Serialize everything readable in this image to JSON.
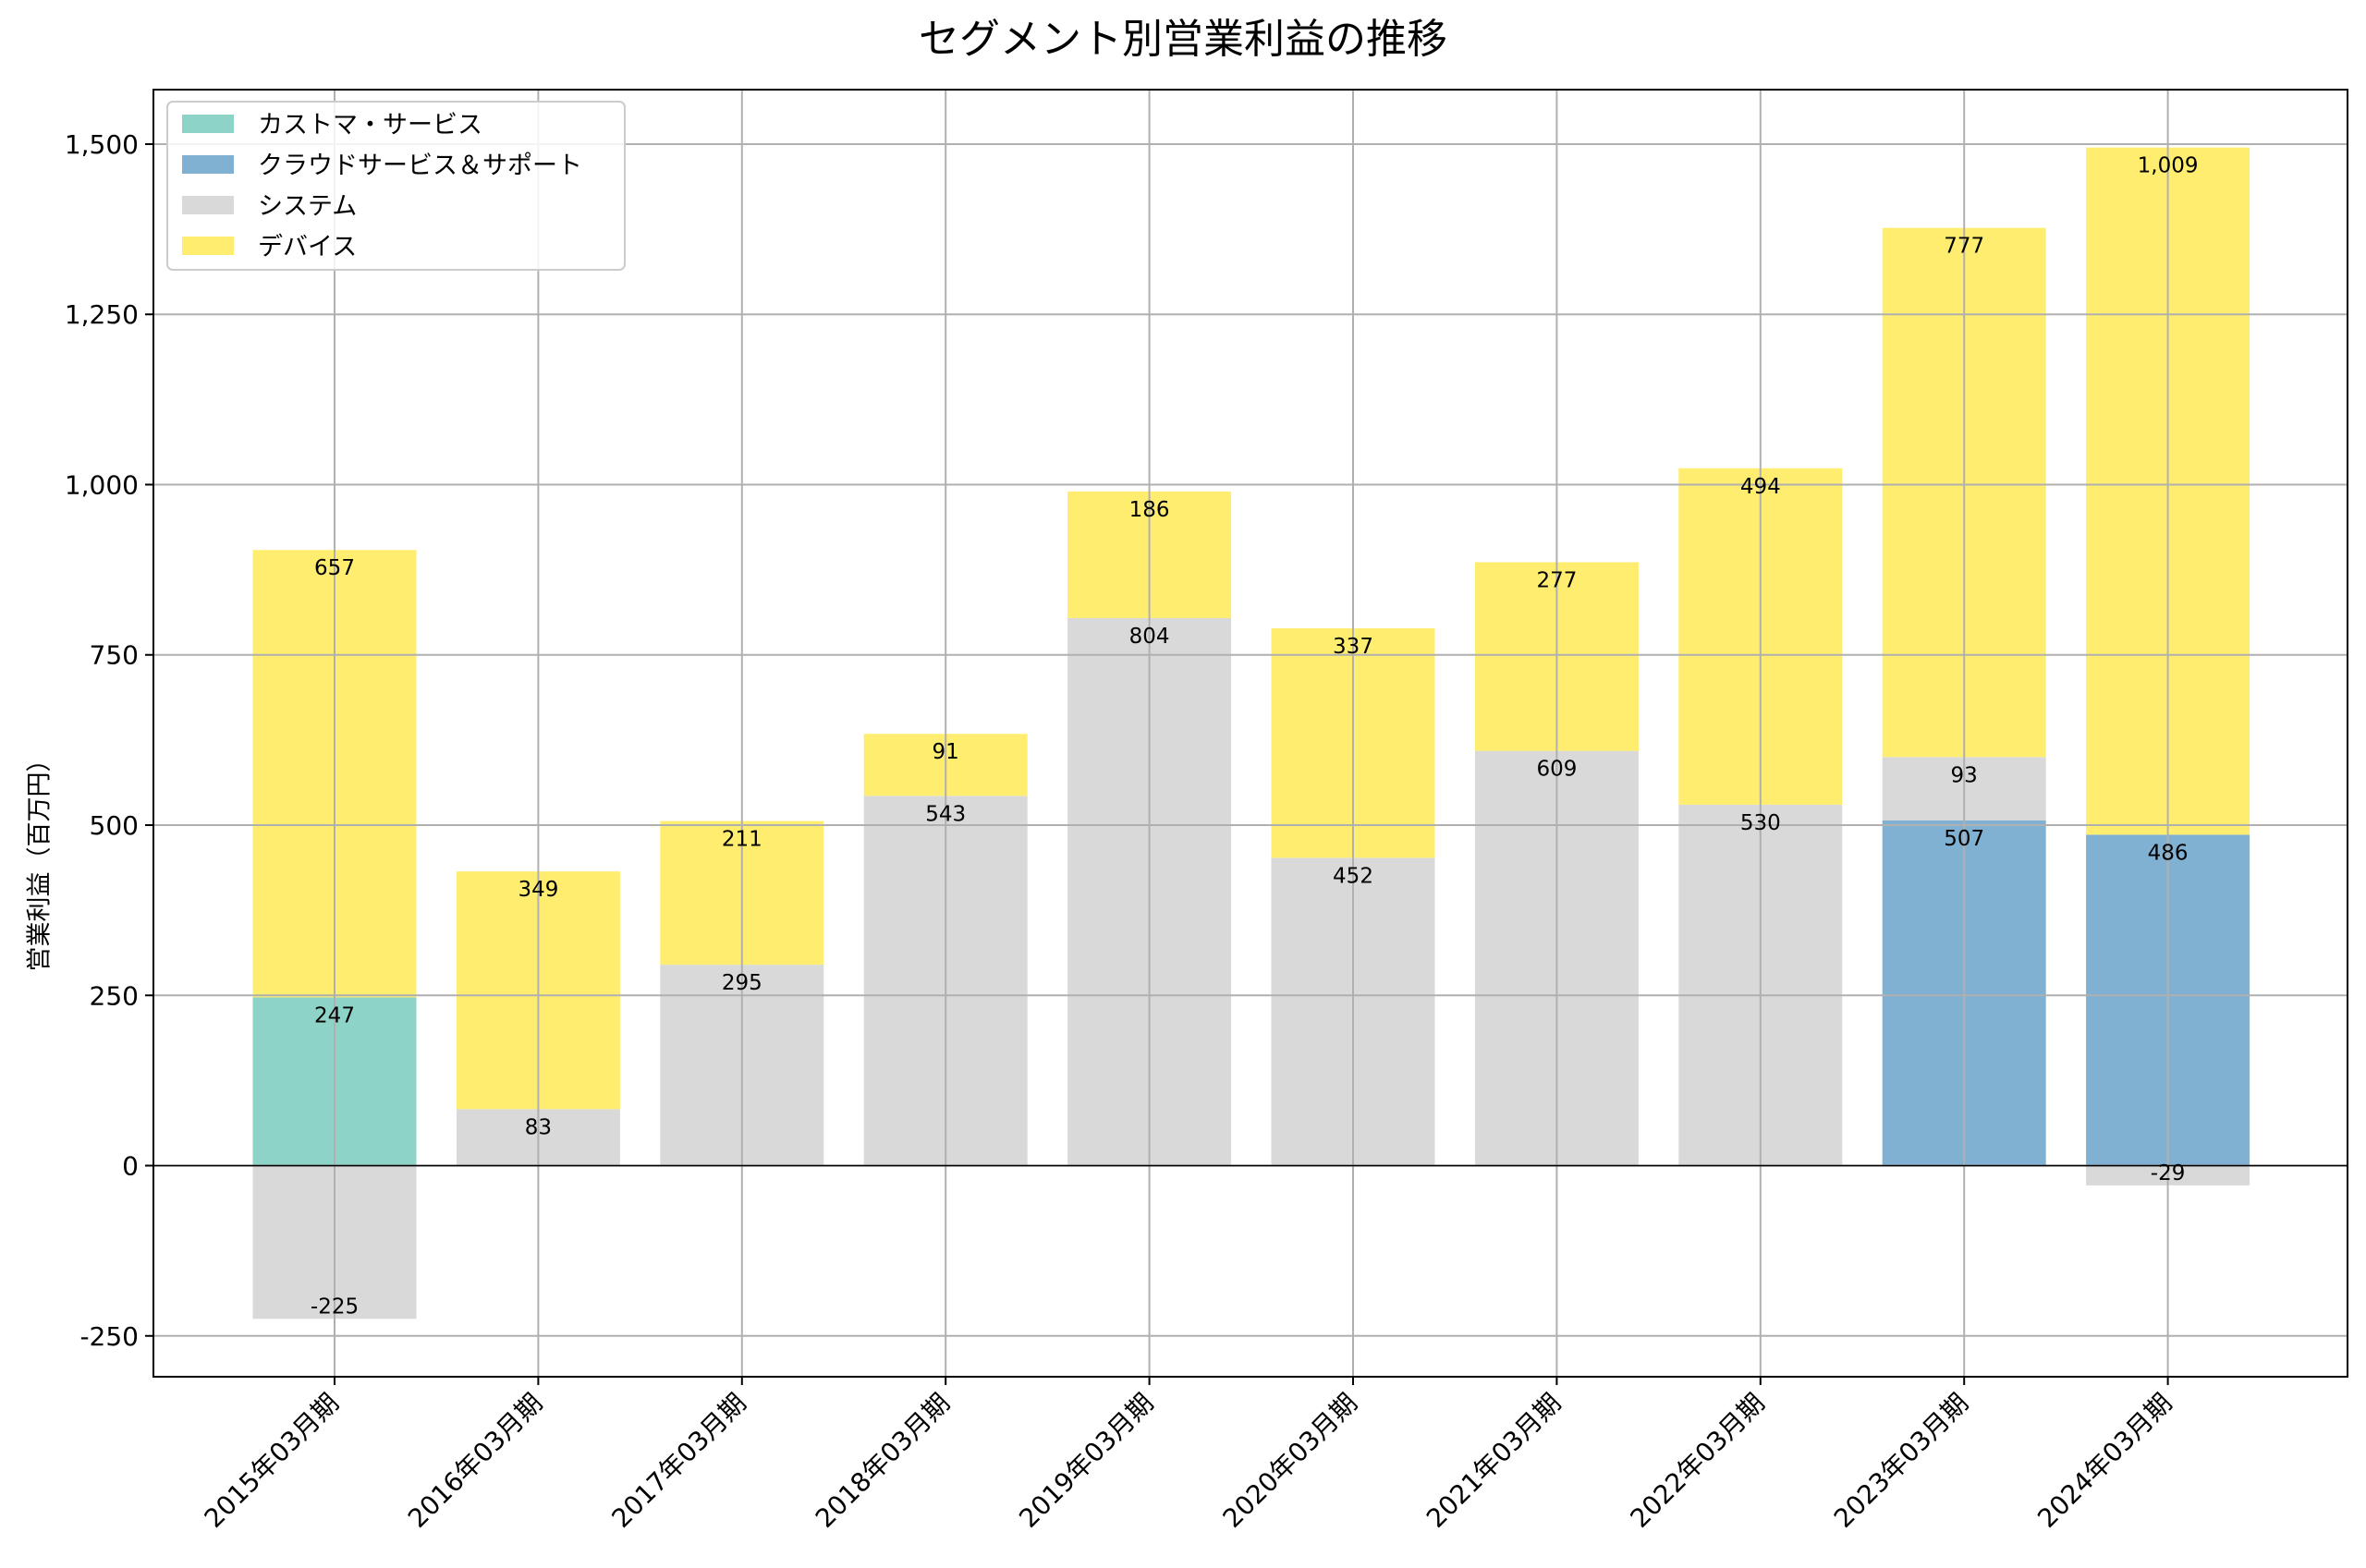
{
  "chart_data": {
    "type": "bar",
    "stacked": true,
    "title": "セグメント別営業利益の推移",
    "xlabel": "",
    "ylabel": "営業利益（百万円）",
    "ylim": [
      -310,
      1580
    ],
    "yticks": [
      -250,
      0,
      250,
      500,
      750,
      1000,
      1250,
      1500
    ],
    "ytick_labels": [
      "-250",
      "0",
      "250",
      "500",
      "750",
      "1,000",
      "1,250",
      "1,500"
    ],
    "grid": true,
    "legend_position": "top-left",
    "categories": [
      "2015年03月期",
      "2016年03月期",
      "2017年03月期",
      "2018年03月期",
      "2019年03月期",
      "2020年03月期",
      "2021年03月期",
      "2022年03月期",
      "2023年03月期",
      "2024年03月期"
    ],
    "series": [
      {
        "name": "カストマ・サービス",
        "color": "#8dd3c7",
        "values": [
          247,
          null,
          null,
          null,
          null,
          null,
          null,
          null,
          null,
          null
        ],
        "labels": [
          "247",
          "",
          "",
          "",
          "",
          "",
          "",
          "",
          "",
          ""
        ]
      },
      {
        "name": "クラウドサービス＆サポート",
        "color": "#80b1d3",
        "values": [
          null,
          null,
          null,
          null,
          null,
          null,
          null,
          null,
          507,
          486
        ],
        "labels": [
          "",
          "",
          "",
          "",
          "",
          "",
          "",
          "",
          "507",
          "486"
        ]
      },
      {
        "name": "システム",
        "color": "#d9d9d9",
        "values": [
          -225,
          83,
          295,
          543,
          804,
          452,
          609,
          530,
          93,
          -29
        ],
        "labels": [
          "-225",
          "83",
          "295",
          "543",
          "804",
          "452",
          "609",
          "530",
          "93",
          "-29"
        ]
      },
      {
        "name": "デバイス",
        "color": "#ffed6f",
        "values": [
          657,
          349,
          211,
          91,
          186,
          337,
          277,
          494,
          777,
          1009
        ],
        "labels": [
          "657",
          "349",
          "211",
          "91",
          "186",
          "337",
          "277",
          "494",
          "777",
          "1,009"
        ]
      }
    ]
  }
}
